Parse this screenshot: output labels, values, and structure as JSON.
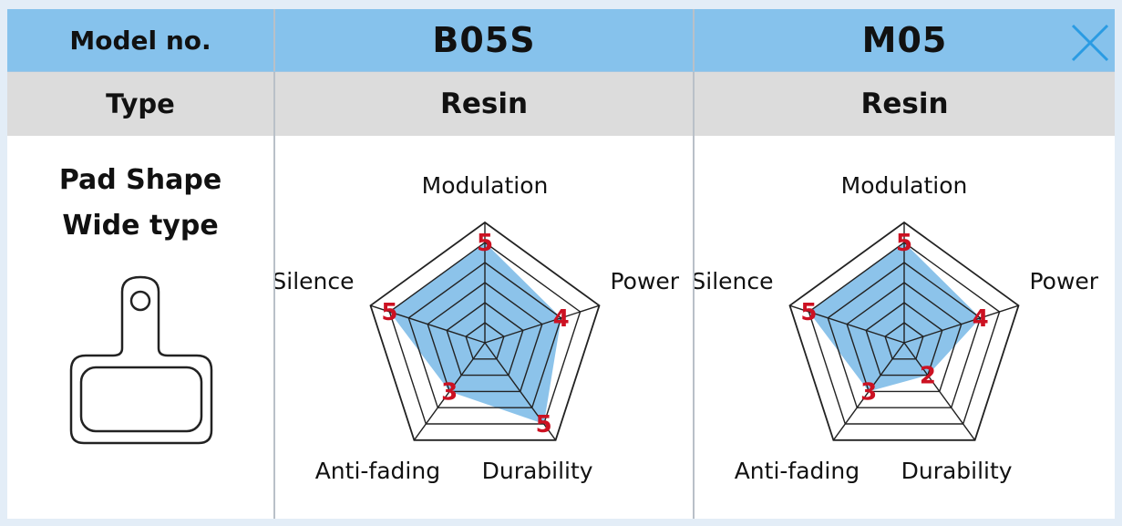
{
  "header": {
    "model_label": "Model no.",
    "type_label": "Type"
  },
  "pad": {
    "line1": "Pad Shape",
    "line2": "Wide type",
    "icon": "brake-pad-icon"
  },
  "close_icon": "close-icon",
  "colors": {
    "header_bg": "#86c2ec",
    "type_bg": "#dcdcdc",
    "fill": "#7fbde8",
    "value": "#cc1122",
    "close": "#2a9be3"
  },
  "chart_data": [
    {
      "type": "radar",
      "model": "B05S",
      "pad_type": "Resin",
      "axes": [
        "Modulation",
        "Power",
        "Durability",
        "Anti-fading",
        "Silence"
      ],
      "values": [
        5,
        4,
        5,
        3,
        5
      ],
      "scale_max": 6
    },
    {
      "type": "radar",
      "model": "M05",
      "pad_type": "Resin",
      "axes": [
        "Modulation",
        "Power",
        "Durability",
        "Anti-fading",
        "Silence"
      ],
      "values": [
        5,
        4,
        2,
        3,
        5
      ],
      "scale_max": 6
    }
  ]
}
